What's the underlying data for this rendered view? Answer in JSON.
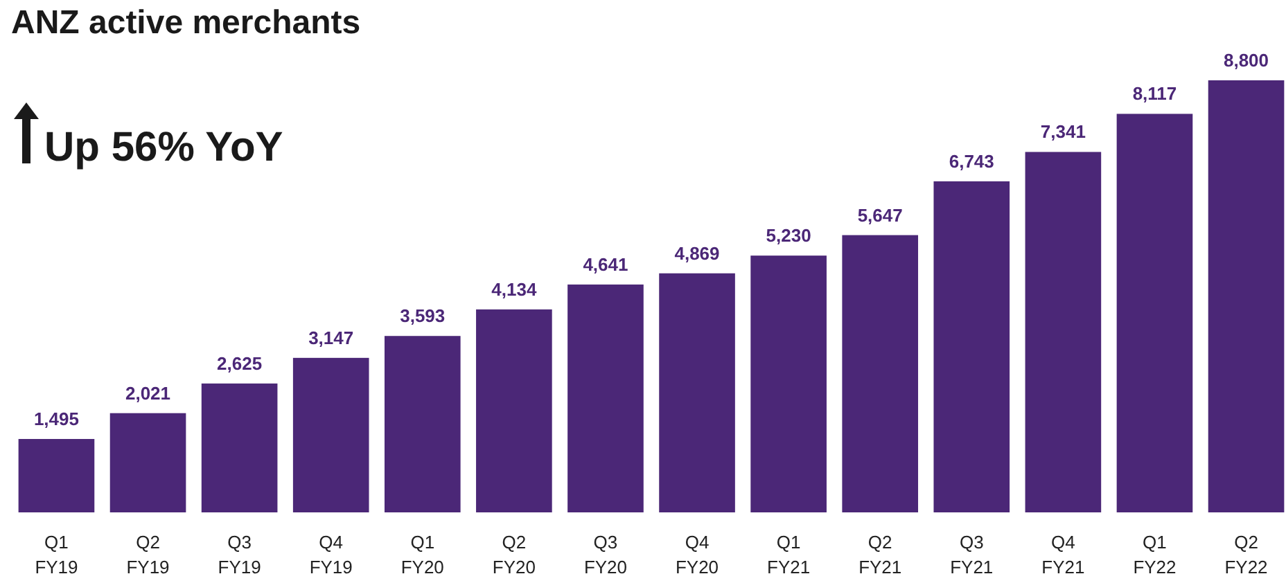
{
  "chart_data": {
    "type": "bar",
    "title": "ANZ active merchants",
    "annotations": [
      "Up 56% YoY"
    ],
    "categories": [
      "Q1 FY19",
      "Q2 FY19",
      "Q3 FY19",
      "Q4 FY19",
      "Q1 FY20",
      "Q2 FY20",
      "Q3 FY20",
      "Q4 FY20",
      "Q1 FY21",
      "Q2 FY21",
      "Q3 FY21",
      "Q4 FY21",
      "Q1 FY22",
      "Q2 FY22"
    ],
    "values": [
      1495,
      2021,
      2625,
      3147,
      3593,
      4134,
      4641,
      4869,
      5230,
      5647,
      6743,
      7341,
      8117,
      8800
    ],
    "value_labels": [
      "1,495",
      "2,021",
      "2,625",
      "3,147",
      "3,593",
      "4,134",
      "4,641",
      "4,869",
      "5,230",
      "5,647",
      "6,743",
      "7,341",
      "8,117",
      "8,800"
    ],
    "color": "#4b2777"
  }
}
